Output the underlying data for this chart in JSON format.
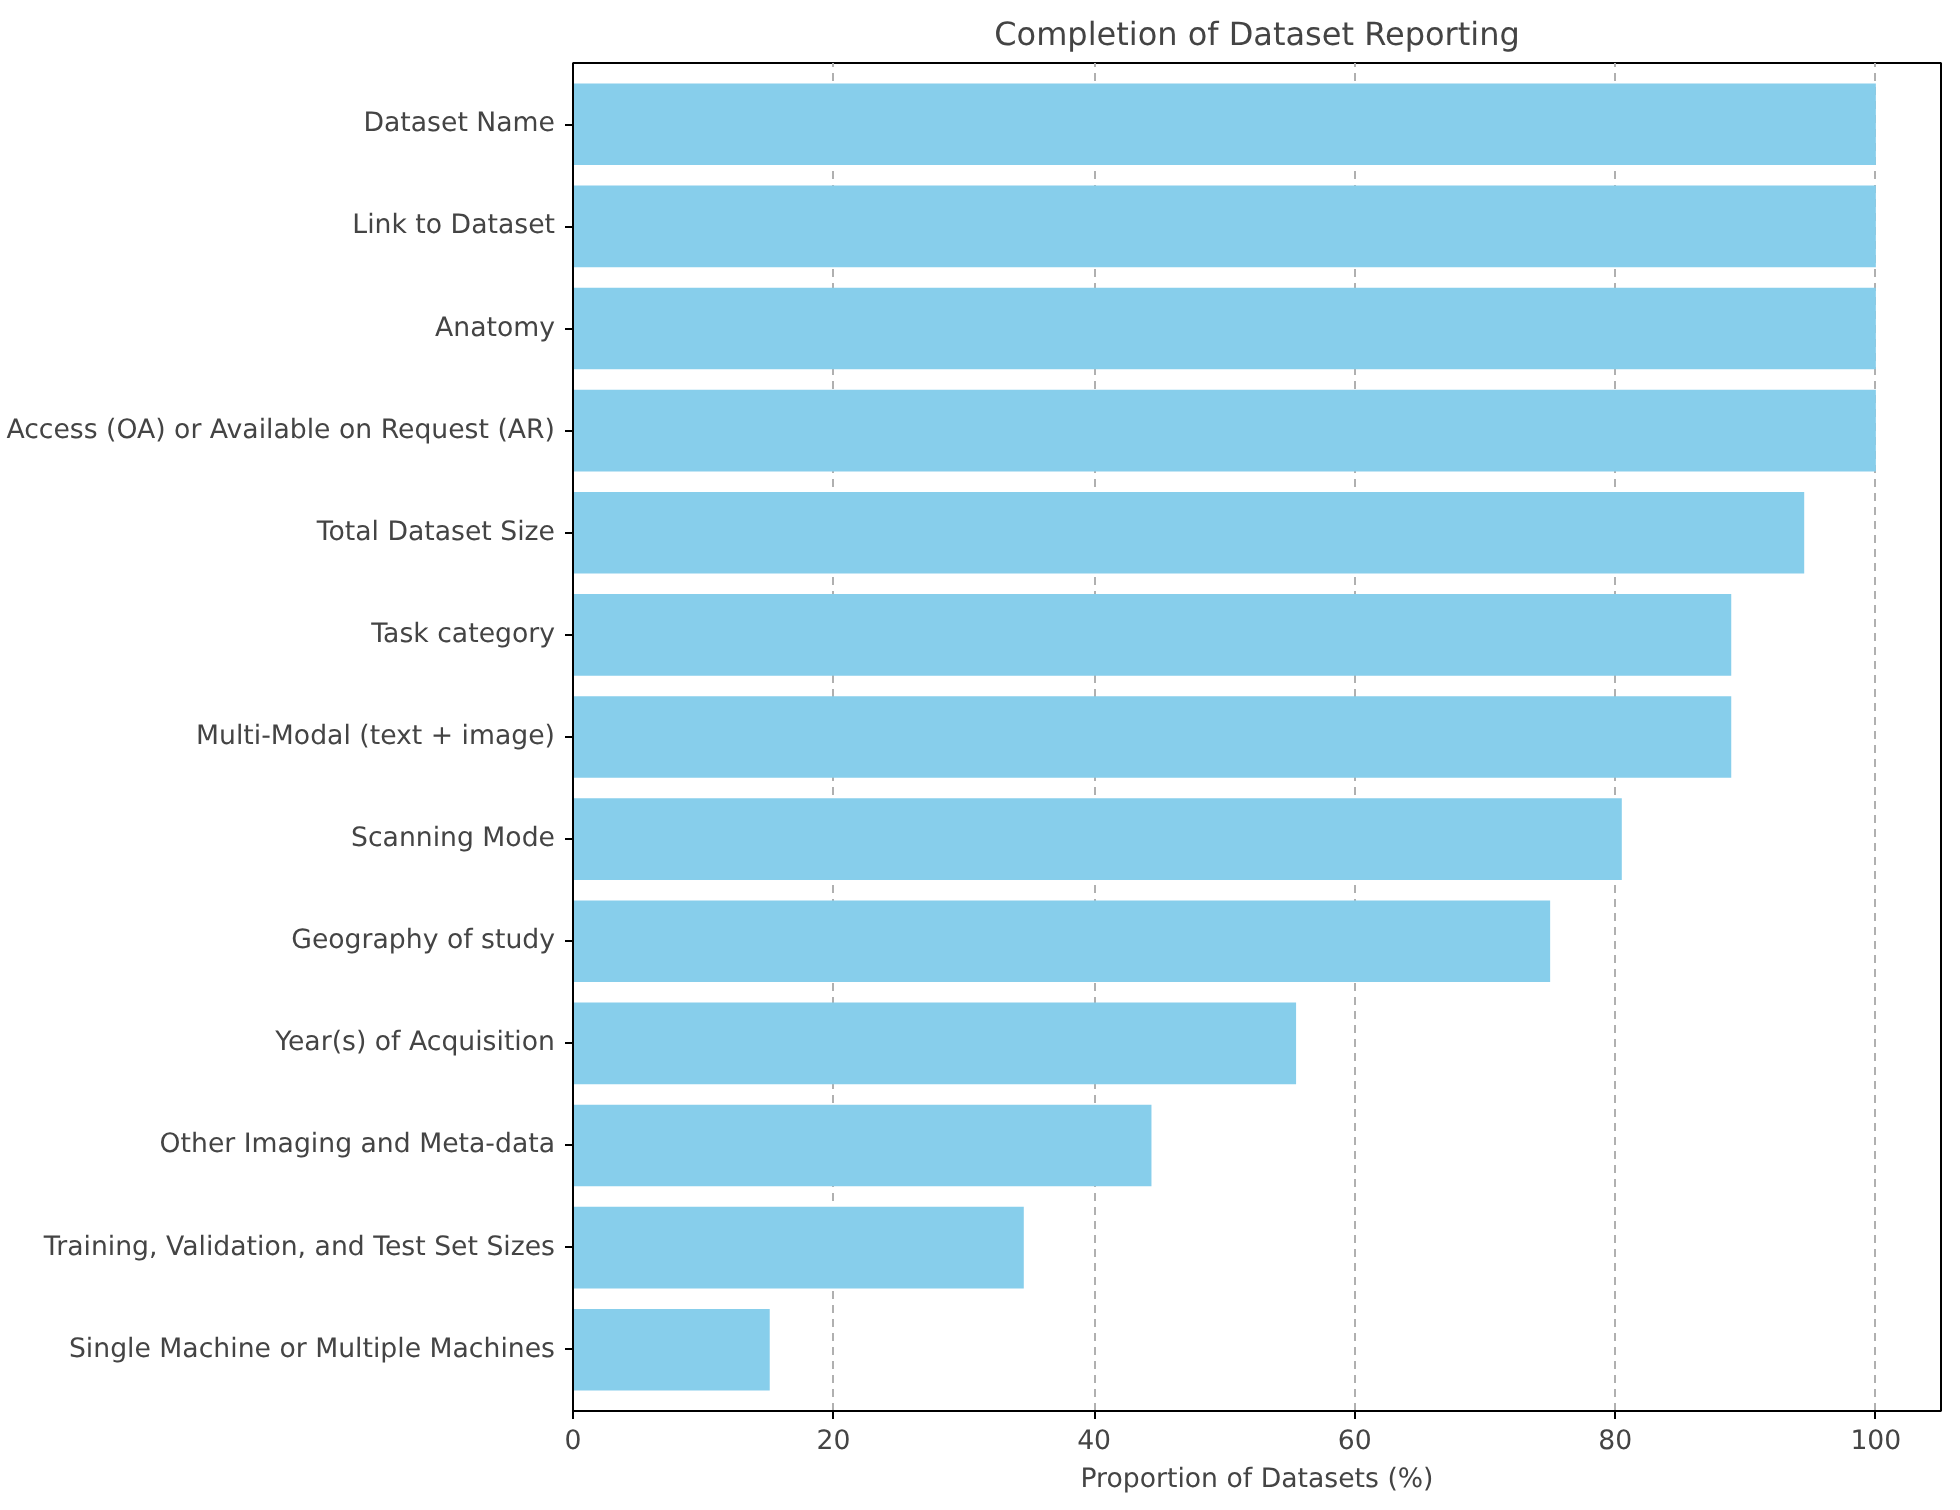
{
  "chart_data": {
    "type": "bar",
    "orientation": "horizontal",
    "title": "Completion of Dataset Reporting",
    "xlabel": "Proportion of Datasets (%)",
    "categories": [
      "Dataset Name",
      "Link to Dataset",
      "Anatomy",
      "Access (OA) or Available on Request (AR)",
      "Total Dataset Size",
      "Task category",
      "Multi-Modal (text + image)",
      "Scanning Mode",
      "Geography of study",
      "Year(s) of Acquisition",
      "Other Imaging and Meta-data",
      "Training, Validation, and Test Set Sizes",
      "Single Machine or Multiple Machines"
    ],
    "values": [
      100,
      100,
      100,
      100,
      94.5,
      88.9,
      88.9,
      80.5,
      75.0,
      55.5,
      44.4,
      34.6,
      15.1
    ],
    "color": "#87ceeb",
    "xlim": [
      0,
      105
    ],
    "xticks": [
      0,
      20,
      40,
      60,
      80,
      100
    ],
    "grid": "x"
  }
}
